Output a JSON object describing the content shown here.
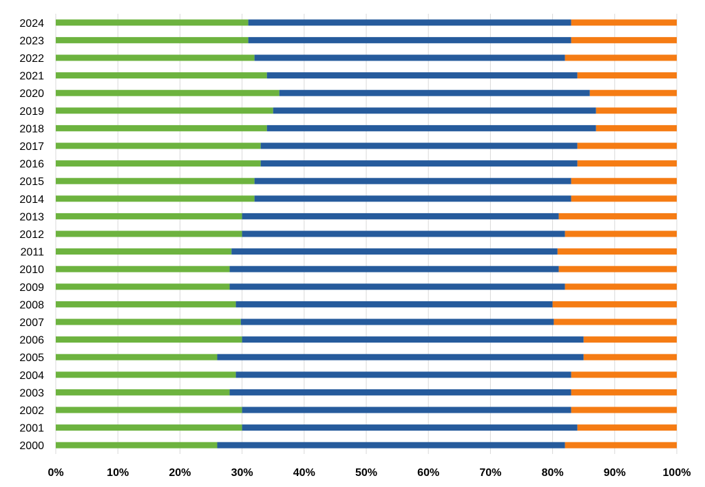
{
  "chart_data": {
    "type": "bar",
    "orientation": "horizontal",
    "stacked": true,
    "normalized_percent": true,
    "title": "",
    "xlabel": "",
    "ylabel": "",
    "xlim": [
      0,
      100
    ],
    "x_ticks": [
      0,
      10,
      20,
      30,
      40,
      50,
      60,
      70,
      80,
      90,
      100
    ],
    "x_tick_labels": [
      "0%",
      "10%",
      "20%",
      "30%",
      "40%",
      "50%",
      "60%",
      "70%",
      "80%",
      "90%",
      "100%"
    ],
    "grid": "vertical",
    "legend": "none",
    "categories": [
      "2000",
      "2001",
      "2002",
      "2003",
      "2004",
      "2005",
      "2006",
      "2007",
      "2008",
      "2009",
      "2010",
      "2011",
      "2012",
      "2013",
      "2014",
      "2015",
      "2016",
      "2017",
      "2018",
      "2019",
      "2020",
      "2021",
      "2022",
      "2023",
      "2024"
    ],
    "series": [
      {
        "color": "#6db33f",
        "values": [
          26,
          30,
          30,
          28,
          29,
          26,
          30,
          29.8,
          29,
          28,
          28,
          28.3,
          30,
          30,
          32,
          32,
          33,
          33,
          34,
          35,
          36,
          34,
          32,
          31,
          31
        ]
      },
      {
        "color": "#265b9c",
        "values": [
          56,
          54,
          53,
          55,
          54,
          59,
          55,
          50.4,
          51,
          54,
          53,
          52.5,
          52,
          51,
          51,
          51,
          51,
          51,
          53,
          52,
          50,
          50,
          50,
          52,
          52
        ]
      },
      {
        "color": "#f57c14",
        "values": [
          18,
          16,
          17,
          17,
          17,
          15,
          15,
          19.8,
          20,
          18,
          19,
          19.2,
          18,
          19,
          17,
          17,
          16,
          16,
          13,
          13,
          14,
          16,
          18,
          17,
          17
        ]
      }
    ]
  }
}
